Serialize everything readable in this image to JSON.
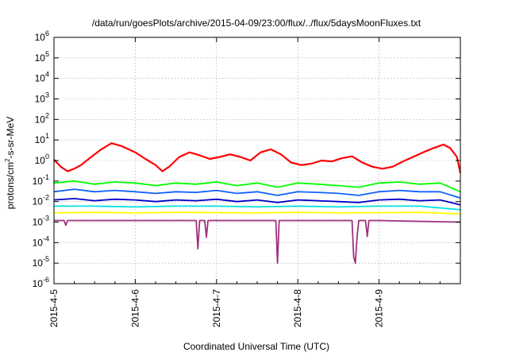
{
  "chart_data": {
    "type": "line",
    "title": "/data/run/goesPlots/archive/2015-04-09/23:00/flux/../flux/5daysMoonFluxes.txt",
    "xlabel": "Coordinated Universal Time (UTC)",
    "ylabel": {
      "prefix": "protons/cm",
      "sup": "2",
      "suffix": "-s-sr-MeV"
    },
    "x_range": [
      "2015-04-05T00:00",
      "2015-04-10T00:00"
    ],
    "x_ticks": [
      "2015-4-5",
      "2015-4-6",
      "2015-4-7",
      "2015-4-8",
      "2015-4-9"
    ],
    "y_scale": "log",
    "ylim": [
      1e-06,
      1000000.0
    ],
    "y_ticks": [
      {
        "base": "10",
        "exp": "-6",
        "value": 1e-06
      },
      {
        "base": "10",
        "exp": "-5",
        "value": 1e-05
      },
      {
        "base": "10",
        "exp": "-4",
        "value": 0.0001
      },
      {
        "base": "10",
        "exp": "-3",
        "value": 0.001
      },
      {
        "base": "10",
        "exp": "-2",
        "value": 0.01
      },
      {
        "base": "10",
        "exp": "-1",
        "value": 0.1
      },
      {
        "base": "10",
        "exp": "0",
        "value": 1
      },
      {
        "base": "10",
        "exp": "1",
        "value": 10
      },
      {
        "base": "10",
        "exp": "2",
        "value": 100
      },
      {
        "base": "10",
        "exp": "3",
        "value": 1000
      },
      {
        "base": "10",
        "exp": "4",
        "value": 10000
      },
      {
        "base": "10",
        "exp": "5",
        "value": 100000
      },
      {
        "base": "10",
        "exp": "6",
        "value": 1000000
      }
    ],
    "grid": true,
    "series": [
      {
        "color": "#ff0000",
        "x": [
          "2015-04-05T00:00",
          "2015-04-05T02:00",
          "2015-04-05T04:00",
          "2015-04-05T06:00",
          "2015-04-05T08:00",
          "2015-04-05T11:00",
          "2015-04-05T14:00",
          "2015-04-05T17:00",
          "2015-04-05T20:00",
          "2015-04-06T00:00",
          "2015-04-06T03:00",
          "2015-04-06T06:00",
          "2015-04-06T08:00",
          "2015-04-06T10:00",
          "2015-04-06T13:00",
          "2015-04-06T16:00",
          "2015-04-06T19:00",
          "2015-04-06T22:00",
          "2015-04-07T01:00",
          "2015-04-07T04:00",
          "2015-04-07T07:00",
          "2015-04-07T10:00",
          "2015-04-07T13:00",
          "2015-04-07T16:00",
          "2015-04-07T19:00",
          "2015-04-07T22:00",
          "2015-04-08T01:00",
          "2015-04-08T04:00",
          "2015-04-08T07:00",
          "2015-04-08T10:00",
          "2015-04-08T13:00",
          "2015-04-08T16:00",
          "2015-04-08T19:00",
          "2015-04-08T22:00",
          "2015-04-09T01:00",
          "2015-04-09T04:00",
          "2015-04-09T07:00",
          "2015-04-09T10:00",
          "2015-04-09T13:00",
          "2015-04-09T16:00",
          "2015-04-09T19:00",
          "2015-04-09T21:00",
          "2015-04-09T23:00",
          "2015-04-10T00:00"
        ],
        "values": [
          1.1,
          0.5,
          0.3,
          0.4,
          0.6,
          1.5,
          3.5,
          7.0,
          5.0,
          2.5,
          1.2,
          0.6,
          0.3,
          0.5,
          1.5,
          2.5,
          1.8,
          1.2,
          1.5,
          2.0,
          1.5,
          1.0,
          2.5,
          3.5,
          2.0,
          0.8,
          0.6,
          0.7,
          1.0,
          0.9,
          1.3,
          1.6,
          0.8,
          0.5,
          0.4,
          0.5,
          0.9,
          1.5,
          2.5,
          4.0,
          6.0,
          4.0,
          1.5,
          0.25
        ]
      },
      {
        "color": "#00ff00",
        "x": [
          "2015-04-05T00:00",
          "2015-04-05T06:00",
          "2015-04-05T12:00",
          "2015-04-05T18:00",
          "2015-04-06T00:00",
          "2015-04-06T06:00",
          "2015-04-06T12:00",
          "2015-04-06T18:00",
          "2015-04-07T00:00",
          "2015-04-07T06:00",
          "2015-04-07T12:00",
          "2015-04-07T18:00",
          "2015-04-08T00:00",
          "2015-04-08T06:00",
          "2015-04-08T12:00",
          "2015-04-08T18:00",
          "2015-04-09T00:00",
          "2015-04-09T06:00",
          "2015-04-09T12:00",
          "2015-04-09T18:00",
          "2015-04-10T00:00"
        ],
        "values": [
          0.08,
          0.1,
          0.07,
          0.09,
          0.08,
          0.06,
          0.08,
          0.07,
          0.09,
          0.06,
          0.08,
          0.05,
          0.08,
          0.07,
          0.06,
          0.05,
          0.08,
          0.09,
          0.07,
          0.08,
          0.03
        ]
      },
      {
        "color": "#1060ff",
        "x": [
          "2015-04-05T00:00",
          "2015-04-05T06:00",
          "2015-04-05T12:00",
          "2015-04-05T18:00",
          "2015-04-06T00:00",
          "2015-04-06T06:00",
          "2015-04-06T12:00",
          "2015-04-06T18:00",
          "2015-04-07T00:00",
          "2015-04-07T06:00",
          "2015-04-07T12:00",
          "2015-04-07T18:00",
          "2015-04-08T00:00",
          "2015-04-08T06:00",
          "2015-04-08T12:00",
          "2015-04-08T18:00",
          "2015-04-09T00:00",
          "2015-04-09T06:00",
          "2015-04-09T12:00",
          "2015-04-09T18:00",
          "2015-04-10T00:00"
        ],
        "values": [
          0.03,
          0.04,
          0.03,
          0.035,
          0.03,
          0.025,
          0.03,
          0.028,
          0.035,
          0.025,
          0.03,
          0.02,
          0.03,
          0.028,
          0.025,
          0.02,
          0.03,
          0.035,
          0.03,
          0.03,
          0.015
        ]
      },
      {
        "color": "#0000c8",
        "x": [
          "2015-04-05T00:00",
          "2015-04-05T06:00",
          "2015-04-05T12:00",
          "2015-04-05T18:00",
          "2015-04-06T00:00",
          "2015-04-06T06:00",
          "2015-04-06T12:00",
          "2015-04-06T18:00",
          "2015-04-07T00:00",
          "2015-04-07T06:00",
          "2015-04-07T12:00",
          "2015-04-07T18:00",
          "2015-04-08T00:00",
          "2015-04-08T06:00",
          "2015-04-08T12:00",
          "2015-04-08T18:00",
          "2015-04-09T00:00",
          "2015-04-09T06:00",
          "2015-04-09T12:00",
          "2015-04-09T18:00",
          "2015-04-10T00:00"
        ],
        "values": [
          0.012,
          0.014,
          0.011,
          0.013,
          0.012,
          0.01,
          0.012,
          0.011,
          0.013,
          0.01,
          0.012,
          0.009,
          0.012,
          0.011,
          0.01,
          0.009,
          0.012,
          0.013,
          0.011,
          0.012,
          0.007
        ]
      },
      {
        "color": "#00e0e0",
        "x": [
          "2015-04-05T00:00",
          "2015-04-05T12:00",
          "2015-04-06T00:00",
          "2015-04-06T12:00",
          "2015-04-07T00:00",
          "2015-04-07T12:00",
          "2015-04-08T00:00",
          "2015-04-08T12:00",
          "2015-04-09T00:00",
          "2015-04-09T12:00",
          "2015-04-10T00:00"
        ],
        "values": [
          0.006,
          0.006,
          0.0055,
          0.006,
          0.006,
          0.0055,
          0.006,
          0.0055,
          0.006,
          0.006,
          0.004
        ]
      },
      {
        "color": "#ffff00",
        "x": [
          "2015-04-05T00:00",
          "2015-04-05T12:00",
          "2015-04-06T00:00",
          "2015-04-06T12:00",
          "2015-04-07T00:00",
          "2015-04-07T12:00",
          "2015-04-08T00:00",
          "2015-04-08T12:00",
          "2015-04-09T00:00",
          "2015-04-09T12:00",
          "2015-04-10T00:00"
        ],
        "values": [
          0.0028,
          0.003,
          0.0028,
          0.003,
          0.0029,
          0.0028,
          0.003,
          0.0028,
          0.0029,
          0.003,
          0.0025
        ]
      },
      {
        "color": "#a03080",
        "x": [
          "2015-04-05T00:00",
          "2015-04-05T03:00",
          "2015-04-05T03:30",
          "2015-04-05T04:00",
          "2015-04-06T00:00",
          "2015-04-06T18:00",
          "2015-04-06T18:30",
          "2015-04-06T19:00",
          "2015-04-06T20:30",
          "2015-04-06T21:00",
          "2015-04-06T21:30",
          "2015-04-07T00:00",
          "2015-04-07T17:30",
          "2015-04-07T18:00",
          "2015-04-07T18:30",
          "2015-04-08T00:00",
          "2015-04-08T16:00",
          "2015-04-08T16:30",
          "2015-04-08T17:00",
          "2015-04-08T17:30",
          "2015-04-08T18:00",
          "2015-04-08T20:00",
          "2015-04-08T20:30",
          "2015-04-08T21:00",
          "2015-04-09T00:00",
          "2015-04-10T00:00"
        ],
        "values": [
          0.0012,
          0.0012,
          0.0007,
          0.0012,
          0.0012,
          0.0012,
          5e-05,
          0.0012,
          0.0012,
          0.00018,
          0.0012,
          0.0012,
          0.0012,
          1e-05,
          0.0012,
          0.0012,
          0.0012,
          2e-05,
          1e-05,
          0.0002,
          0.0012,
          0.0012,
          0.0002,
          0.0012,
          0.0012,
          0.001
        ]
      }
    ]
  }
}
